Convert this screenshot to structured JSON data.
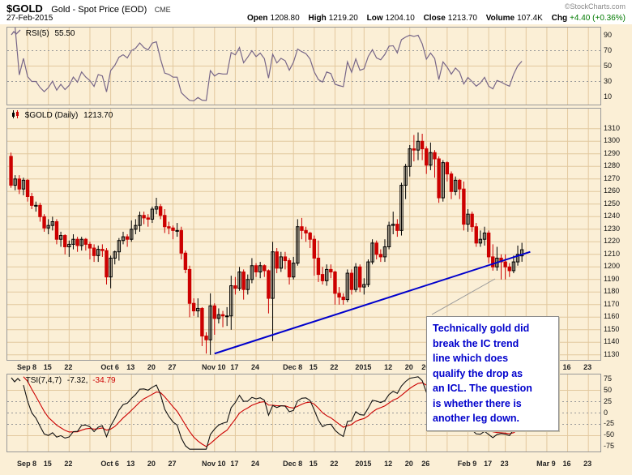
{
  "header": {
    "symbol": "$GOLD",
    "title": "Gold - Spot Price (EOD)",
    "exchange": "CME",
    "copyright": "©StockCharts.com",
    "date": "27-Feb-2015",
    "quote": [
      {
        "label": "Open",
        "value": "1208.80"
      },
      {
        "label": "High",
        "value": "1219.20"
      },
      {
        "label": "Low",
        "value": "1204.10"
      },
      {
        "label": "Close",
        "value": "1213.70"
      },
      {
        "label": "Volume",
        "value": "107.4K"
      },
      {
        "label": "Chg",
        "value": "+4.40 (+0.36%)"
      }
    ]
  },
  "panels": {
    "rsi": {
      "label": "RSI(5)",
      "value": "55.50"
    },
    "price": {
      "label": "$GOLD (Daily)",
      "value": "1213.70"
    },
    "tsi": {
      "label": "TSI(7,4,7)",
      "value": "-7.32,",
      "signal": "-34.79"
    }
  },
  "annotation": {
    "text": "Technically gold did\nbreak the IC trend\nline which does\nqualify the drop as\nan ICL. The question\nis whether there is\nanother leg down."
  },
  "colors": {
    "background": "#FBEFD6",
    "grid": "#E2C89E",
    "candle_up": "#000000",
    "candle_down": "#CC0000",
    "trendline": "#0000CC",
    "annotation_text": "#0000CC",
    "rsi_line": "#776688",
    "tsi_line": "#111111",
    "tsi_signal": "#CC0000",
    "chg_positive": "#007a00",
    "dashed_line": "#999999"
  },
  "chart_data": {
    "type": "candlestick",
    "symbol": "$GOLD",
    "timeframe": "Daily",
    "title": "Gold - Spot Price (EOD) CME",
    "last_close": 1213.7,
    "total_slots": 142,
    "columns": [
      "date",
      "open",
      "high",
      "low",
      "close"
    ],
    "candles": [
      [
        "Sep 2",
        1288,
        1291,
        1263,
        1265
      ],
      [
        "Sep 3",
        1265,
        1273,
        1261,
        1270
      ],
      [
        "Sep 4",
        1270,
        1273,
        1258,
        1262
      ],
      [
        "Sep 5",
        1262,
        1271,
        1257,
        1269
      ],
      [
        "Sep 8",
        1269,
        1270,
        1252,
        1256
      ],
      [
        "Sep 9",
        1256,
        1259,
        1246,
        1249
      ],
      [
        "Sep 10",
        1249,
        1252,
        1244,
        1249
      ],
      [
        "Sep 11",
        1249,
        1251,
        1236,
        1240
      ],
      [
        "Sep 12",
        1240,
        1242,
        1228,
        1231
      ],
      [
        "Sep 15",
        1231,
        1238,
        1226,
        1233
      ],
      [
        "Sep 16",
        1233,
        1240,
        1229,
        1236
      ],
      [
        "Sep 17",
        1236,
        1238,
        1218,
        1222
      ],
      [
        "Sep 18",
        1222,
        1228,
        1216,
        1225
      ],
      [
        "Sep 19",
        1225,
        1226,
        1210,
        1216
      ],
      [
        "Sep 22",
        1216,
        1221,
        1208,
        1218
      ],
      [
        "Sep 23",
        1218,
        1226,
        1214,
        1222
      ],
      [
        "Sep 24",
        1222,
        1224,
        1212,
        1217
      ],
      [
        "Sep 25",
        1217,
        1224,
        1213,
        1222
      ],
      [
        "Sep 26",
        1222,
        1223,
        1213,
        1218
      ],
      [
        "Sep 29",
        1218,
        1220,
        1206,
        1215
      ],
      [
        "Sep 30",
        1215,
        1218,
        1204,
        1209
      ],
      [
        "Oct 1",
        1209,
        1217,
        1204,
        1214
      ],
      [
        "Oct 2",
        1214,
        1218,
        1208,
        1213
      ],
      [
        "Oct 3",
        1213,
        1215,
        1186,
        1192
      ],
      [
        "Oct 6",
        1192,
        1209,
        1183,
        1207
      ],
      [
        "Oct 7",
        1207,
        1213,
        1202,
        1212
      ],
      [
        "Oct 8",
        1212,
        1223,
        1205,
        1221
      ],
      [
        "Oct 9",
        1221,
        1228,
        1218,
        1224
      ],
      [
        "Oct 10",
        1224,
        1226,
        1216,
        1222
      ],
      [
        "Oct 13",
        1222,
        1237,
        1220,
        1230
      ],
      [
        "Oct 14",
        1230,
        1238,
        1226,
        1233
      ],
      [
        "Oct 15",
        1233,
        1244,
        1228,
        1241
      ],
      [
        "Oct 16",
        1241,
        1244,
        1234,
        1239
      ],
      [
        "Oct 17",
        1239,
        1242,
        1232,
        1238
      ],
      [
        "Oct 20",
        1238,
        1248,
        1235,
        1246
      ],
      [
        "Oct 21",
        1246,
        1255,
        1242,
        1248
      ],
      [
        "Oct 22",
        1248,
        1250,
        1238,
        1241
      ],
      [
        "Oct 23",
        1241,
        1246,
        1227,
        1232
      ],
      [
        "Oct 24",
        1232,
        1236,
        1226,
        1231
      ],
      [
        "Oct 27",
        1231,
        1233,
        1222,
        1229
      ],
      [
        "Oct 28",
        1229,
        1235,
        1224,
        1229
      ],
      [
        "Oct 29",
        1229,
        1232,
        1206,
        1211
      ],
      [
        "Oct 30",
        1211,
        1213,
        1195,
        1198
      ],
      [
        "Oct 31",
        1198,
        1201,
        1160,
        1171
      ],
      [
        "Nov 3",
        1171,
        1175,
        1161,
        1165
      ],
      [
        "Nov 4",
        1165,
        1175,
        1160,
        1167
      ],
      [
        "Nov 5",
        1167,
        1168,
        1137,
        1145
      ],
      [
        "Nov 6",
        1145,
        1148,
        1131,
        1142
      ],
      [
        "Nov 7",
        1142,
        1179,
        1130,
        1169
      ],
      [
        "Nov 10",
        1169,
        1171,
        1146,
        1159
      ],
      [
        "Nov 11",
        1159,
        1167,
        1155,
        1162
      ],
      [
        "Nov 12",
        1162,
        1165,
        1152,
        1161
      ],
      [
        "Nov 13",
        1161,
        1168,
        1153,
        1161
      ],
      [
        "Nov 14",
        1161,
        1193,
        1150,
        1185
      ],
      [
        "Nov 17",
        1185,
        1192,
        1178,
        1183
      ],
      [
        "Nov 18",
        1183,
        1200,
        1181,
        1196
      ],
      [
        "Nov 19",
        1196,
        1198,
        1174,
        1182
      ],
      [
        "Nov 20",
        1182,
        1194,
        1178,
        1190
      ],
      [
        "Nov 21",
        1190,
        1207,
        1187,
        1201
      ],
      [
        "Nov 24",
        1201,
        1203,
        1192,
        1196
      ],
      [
        "Nov 25",
        1196,
        1204,
        1191,
        1201
      ],
      [
        "Nov 26",
        1201,
        1202,
        1192,
        1197
      ],
      [
        "Nov 28",
        1197,
        1198,
        1163,
        1175
      ],
      [
        "Dec 1",
        1175,
        1220,
        1141,
        1212
      ],
      [
        "Dec 2",
        1212,
        1215,
        1195,
        1199
      ],
      [
        "Dec 3",
        1199,
        1212,
        1196,
        1208
      ],
      [
        "Dec 4",
        1208,
        1212,
        1198,
        1205
      ],
      [
        "Dec 5",
        1205,
        1207,
        1186,
        1192
      ],
      [
        "Dec 8",
        1192,
        1208,
        1190,
        1203
      ],
      [
        "Dec 9",
        1203,
        1238,
        1201,
        1232
      ],
      [
        "Dec 10",
        1232,
        1239,
        1222,
        1229
      ],
      [
        "Dec 11",
        1229,
        1232,
        1220,
        1227
      ],
      [
        "Dec 12",
        1227,
        1228,
        1215,
        1222
      ],
      [
        "Dec 15",
        1222,
        1225,
        1193,
        1207
      ],
      [
        "Dec 16",
        1207,
        1221,
        1188,
        1194
      ],
      [
        "Dec 17",
        1194,
        1200,
        1186,
        1189
      ],
      [
        "Dec 18",
        1189,
        1202,
        1185,
        1198
      ],
      [
        "Dec 19",
        1198,
        1202,
        1191,
        1196
      ],
      [
        "Dec 22",
        1196,
        1197,
        1170,
        1179
      ],
      [
        "Dec 23",
        1179,
        1184,
        1170,
        1176
      ],
      [
        "Dec 24",
        1176,
        1179,
        1170,
        1174
      ],
      [
        "Dec 26",
        1174,
        1198,
        1172,
        1195
      ],
      [
        "Dec 29",
        1195,
        1198,
        1178,
        1182
      ],
      [
        "Dec 30",
        1182,
        1203,
        1180,
        1200
      ],
      [
        "Dec 31",
        1200,
        1202,
        1180,
        1184
      ],
      [
        "Jan 2",
        1184,
        1191,
        1178,
        1186
      ],
      [
        "Jan 5",
        1186,
        1206,
        1184,
        1204
      ],
      [
        "Jan 6",
        1204,
        1222,
        1202,
        1219
      ],
      [
        "Jan 7",
        1219,
        1221,
        1206,
        1210
      ],
      [
        "Jan 8",
        1210,
        1214,
        1204,
        1208
      ],
      [
        "Jan 9",
        1208,
        1222,
        1204,
        1216
      ],
      [
        "Jan 12",
        1216,
        1236,
        1214,
        1233
      ],
      [
        "Jan 13",
        1233,
        1244,
        1226,
        1234
      ],
      [
        "Jan 14",
        1234,
        1238,
        1224,
        1229
      ],
      [
        "Jan 15",
        1229,
        1267,
        1225,
        1265
      ],
      [
        "Jan 16",
        1265,
        1282,
        1254,
        1280
      ],
      [
        "Jan 20",
        1280,
        1297,
        1272,
        1294
      ],
      [
        "Jan 21",
        1294,
        1305,
        1284,
        1293
      ],
      [
        "Jan 22",
        1293,
        1307,
        1285,
        1300
      ],
      [
        "Jan 23",
        1300,
        1306,
        1285,
        1294
      ],
      [
        "Jan 26",
        1294,
        1296,
        1274,
        1281
      ],
      [
        "Jan 27",
        1281,
        1299,
        1277,
        1291
      ],
      [
        "Jan 28",
        1291,
        1293,
        1271,
        1286
      ],
      [
        "Jan 29",
        1286,
        1288,
        1251,
        1255
      ],
      [
        "Jan 30",
        1255,
        1285,
        1252,
        1283
      ],
      [
        "Feb 2",
        1283,
        1284,
        1268,
        1274
      ],
      [
        "Feb 3",
        1274,
        1276,
        1254,
        1260
      ],
      [
        "Feb 4",
        1260,
        1272,
        1257,
        1269
      ],
      [
        "Feb 5",
        1269,
        1270,
        1254,
        1262
      ],
      [
        "Feb 6",
        1262,
        1268,
        1229,
        1234
      ],
      [
        "Feb 9",
        1234,
        1246,
        1228,
        1242
      ],
      [
        "Feb 10",
        1242,
        1244,
        1228,
        1232
      ],
      [
        "Feb 11",
        1232,
        1235,
        1216,
        1219
      ],
      [
        "Feb 12",
        1219,
        1229,
        1216,
        1222
      ],
      [
        "Feb 13",
        1222,
        1232,
        1217,
        1227
      ],
      [
        "Feb 17",
        1227,
        1229,
        1203,
        1208
      ],
      [
        "Feb 18",
        1208,
        1218,
        1197,
        1200
      ],
      [
        "Feb 19",
        1200,
        1216,
        1197,
        1207
      ],
      [
        "Feb 20",
        1207,
        1210,
        1190,
        1204
      ],
      [
        "Feb 23",
        1204,
        1210,
        1190,
        1200
      ],
      [
        "Feb 24",
        1200,
        1203,
        1192,
        1197
      ],
      [
        "Feb 25",
        1197,
        1209,
        1195,
        1204
      ],
      [
        "Feb 26",
        1204,
        1217,
        1201,
        1210
      ],
      [
        "Feb 27",
        1208.8,
        1219.2,
        1204.1,
        1213.7
      ]
    ],
    "x_labels": [
      {
        "text": "Sep 8",
        "slot": 4
      },
      {
        "text": "15",
        "slot": 9
      },
      {
        "text": "22",
        "slot": 14
      },
      {
        "text": "Oct 6",
        "slot": 24
      },
      {
        "text": "13",
        "slot": 29
      },
      {
        "text": "20",
        "slot": 34
      },
      {
        "text": "27",
        "slot": 39
      },
      {
        "text": "Nov 10",
        "slot": 49
      },
      {
        "text": "17",
        "slot": 54
      },
      {
        "text": "24",
        "slot": 59
      },
      {
        "text": "Dec 8",
        "slot": 68
      },
      {
        "text": "15",
        "slot": 73
      },
      {
        "text": "22",
        "slot": 78
      },
      {
        "text": "2015",
        "slot": 85
      },
      {
        "text": "12",
        "slot": 91
      },
      {
        "text": "20",
        "slot": 96
      },
      {
        "text": "26",
        "slot": 100
      },
      {
        "text": "Feb 9",
        "slot": 110
      },
      {
        "text": "17",
        "slot": 115
      },
      {
        "text": "23",
        "slot": 119
      },
      {
        "text": "Mar 9",
        "slot": 129
      },
      {
        "text": "16",
        "slot": 134
      },
      {
        "text": "23",
        "slot": 139
      }
    ],
    "extra_grid_slots": [
      19,
      44,
      63,
      82,
      105,
      124
    ],
    "y_axes": {
      "price": {
        "range": [
          1126,
          1326
        ],
        "ticks": [
          1310,
          1300,
          1290,
          1280,
          1270,
          1260,
          1250,
          1240,
          1230,
          1220,
          1210,
          1200,
          1190,
          1180,
          1170,
          1160,
          1150,
          1140,
          1130
        ]
      },
      "rsi": {
        "range": [
          0,
          100
        ],
        "ticks": [
          90,
          70,
          50,
          30,
          10
        ],
        "dashed": [
          70,
          30
        ],
        "mid": 50,
        "period": 5,
        "last": 55.5
      },
      "tsi": {
        "range": [
          -85,
          85
        ],
        "ticks": [
          75,
          50,
          25,
          0,
          -25,
          -50,
          -75
        ],
        "dashed": [
          25,
          -25,
          0
        ],
        "solid": [
          50,
          -50
        ],
        "params": [
          7,
          4,
          7
        ],
        "last": -7.32,
        "signal_last": -34.79
      }
    },
    "trendline": {
      "from_index": 49,
      "from_price": 1131,
      "to_index": 125,
      "to_price": 1212
    }
  }
}
